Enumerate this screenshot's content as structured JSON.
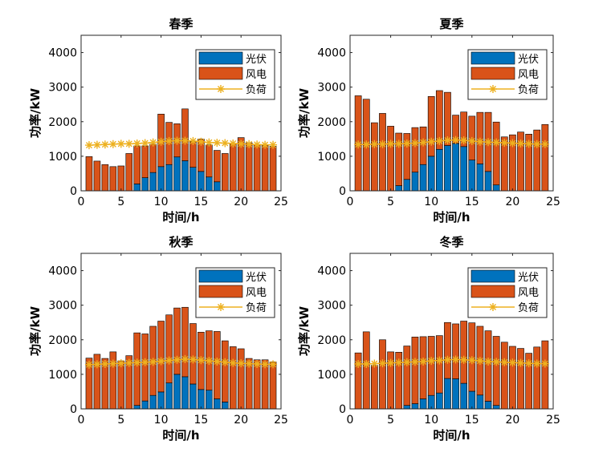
{
  "colors": {
    "pv": "#0072BD",
    "wind": "#D95319",
    "load": "#EDB120",
    "axes": "#262626",
    "background": "#ffffff"
  },
  "chart_data": [
    {
      "type": "bar",
      "stacked": true,
      "title": "春季",
      "xlabel": "时间/h",
      "ylabel": "功率/kW",
      "xlim": [
        0,
        25
      ],
      "ylim": [
        0,
        4500
      ],
      "xticks": [
        0,
        5,
        10,
        15,
        20,
        25
      ],
      "yticks": [
        0,
        1000,
        2000,
        3000,
        4000
      ],
      "legend_position": "top-right",
      "x": [
        1,
        2,
        3,
        4,
        5,
        6,
        7,
        8,
        9,
        10,
        11,
        12,
        13,
        14,
        15,
        16,
        17,
        18,
        19,
        20,
        21,
        22,
        23,
        24
      ],
      "series": [
        {
          "name": "光伏",
          "kind": "bar",
          "color": "#0072BD",
          "values": [
            0,
            0,
            0,
            0,
            0,
            0,
            200,
            380,
            530,
            700,
            760,
            980,
            870,
            680,
            560,
            400,
            260,
            0,
            0,
            0,
            0,
            0,
            0,
            0
          ]
        },
        {
          "name": "风电",
          "kind": "bar",
          "color": "#D95319",
          "values": [
            990,
            860,
            760,
            700,
            720,
            1080,
            1100,
            920,
            820,
            1520,
            1220,
            960,
            1500,
            740,
            940,
            930,
            910,
            1080,
            1370,
            1540,
            1390,
            1340,
            1310,
            1290
          ]
        },
        {
          "name": "负荷",
          "kind": "line",
          "marker": "*",
          "color": "#EDB120",
          "values": [
            1320,
            1330,
            1340,
            1350,
            1360,
            1360,
            1370,
            1380,
            1400,
            1420,
            1440,
            1450,
            1450,
            1440,
            1420,
            1400,
            1390,
            1380,
            1370,
            1360,
            1350,
            1340,
            1330,
            1330
          ]
        }
      ]
    },
    {
      "type": "bar",
      "stacked": true,
      "title": "夏季",
      "xlabel": "时间/h",
      "ylabel": "功率/kW",
      "xlim": [
        0,
        25
      ],
      "ylim": [
        0,
        4500
      ],
      "xticks": [
        0,
        5,
        10,
        15,
        20,
        25
      ],
      "yticks": [
        0,
        1000,
        2000,
        3000,
        4000
      ],
      "legend_position": "top-right",
      "x": [
        1,
        2,
        3,
        4,
        5,
        6,
        7,
        8,
        9,
        10,
        11,
        12,
        13,
        14,
        15,
        16,
        17,
        18,
        19,
        20,
        21,
        22,
        23,
        24
      ],
      "series": [
        {
          "name": "光伏",
          "kind": "bar",
          "color": "#0072BD",
          "values": [
            0,
            0,
            0,
            0,
            0,
            150,
            330,
            540,
            760,
            1000,
            1200,
            1310,
            1370,
            1280,
            890,
            780,
            560,
            170,
            0,
            0,
            0,
            0,
            0,
            0
          ]
        },
        {
          "name": "风电",
          "kind": "bar",
          "color": "#D95319",
          "values": [
            2750,
            2650,
            1970,
            2240,
            1870,
            1520,
            1330,
            1290,
            1090,
            1730,
            1700,
            1540,
            820,
            1000,
            1270,
            1490,
            1710,
            1820,
            1560,
            1620,
            1700,
            1640,
            1760,
            1920
          ]
        },
        {
          "name": "负荷",
          "kind": "line",
          "marker": "*",
          "color": "#EDB120",
          "values": [
            1340,
            1340,
            1350,
            1350,
            1360,
            1360,
            1370,
            1380,
            1400,
            1420,
            1440,
            1460,
            1470,
            1460,
            1440,
            1420,
            1410,
            1400,
            1390,
            1380,
            1370,
            1360,
            1350,
            1350
          ]
        }
      ]
    },
    {
      "type": "bar",
      "stacked": true,
      "title": "秋季",
      "xlabel": "时间/h",
      "ylabel": "功率/kW",
      "xlim": [
        0,
        25
      ],
      "ylim": [
        0,
        4500
      ],
      "xticks": [
        0,
        5,
        10,
        15,
        20,
        25
      ],
      "yticks": [
        0,
        1000,
        2000,
        3000,
        4000
      ],
      "legend_position": "top-right",
      "x": [
        1,
        2,
        3,
        4,
        5,
        6,
        7,
        8,
        9,
        10,
        11,
        12,
        13,
        14,
        15,
        16,
        17,
        18,
        19,
        20,
        21,
        22,
        23,
        24
      ],
      "series": [
        {
          "name": "光伏",
          "kind": "bar",
          "color": "#0072BD",
          "values": [
            0,
            0,
            0,
            0,
            0,
            0,
            100,
            230,
            390,
            490,
            750,
            1000,
            930,
            720,
            560,
            540,
            290,
            200,
            0,
            0,
            0,
            0,
            0,
            0
          ]
        },
        {
          "name": "风电",
          "kind": "bar",
          "color": "#D95319",
          "values": [
            1470,
            1580,
            1460,
            1650,
            1390,
            1540,
            2100,
            1940,
            2000,
            2050,
            1970,
            1920,
            2010,
            1750,
            1660,
            1720,
            1950,
            1770,
            1800,
            1740,
            1460,
            1420,
            1420,
            1360
          ]
        },
        {
          "name": "负荷",
          "kind": "line",
          "marker": "*",
          "color": "#EDB120",
          "values": [
            1280,
            1290,
            1300,
            1310,
            1320,
            1330,
            1340,
            1350,
            1360,
            1380,
            1400,
            1420,
            1440,
            1430,
            1410,
            1390,
            1370,
            1350,
            1330,
            1320,
            1310,
            1300,
            1290,
            1290
          ]
        }
      ]
    },
    {
      "type": "bar",
      "stacked": true,
      "title": "冬季",
      "xlabel": "时间/h",
      "ylabel": "功率/kW",
      "xlim": [
        0,
        25
      ],
      "ylim": [
        0,
        4500
      ],
      "xticks": [
        0,
        5,
        10,
        15,
        20,
        25
      ],
      "yticks": [
        0,
        1000,
        2000,
        3000,
        4000
      ],
      "legend_position": "top-right",
      "x": [
        1,
        2,
        3,
        4,
        5,
        6,
        7,
        8,
        9,
        10,
        11,
        12,
        13,
        14,
        15,
        16,
        17,
        18,
        19,
        20,
        21,
        22,
        23,
        24
      ],
      "series": [
        {
          "name": "光伏",
          "kind": "bar",
          "color": "#0072BD",
          "values": [
            0,
            0,
            0,
            0,
            0,
            0,
            100,
            150,
            290,
            390,
            460,
            880,
            870,
            740,
            510,
            400,
            220,
            100,
            0,
            0,
            0,
            0,
            0,
            0
          ]
        },
        {
          "name": "风电",
          "kind": "bar",
          "color": "#D95319",
          "values": [
            1620,
            2230,
            1260,
            2000,
            1650,
            1640,
            1720,
            1930,
            1800,
            1710,
            1660,
            1620,
            1590,
            1800,
            1980,
            1990,
            2040,
            2000,
            1930,
            1810,
            1750,
            1610,
            1790,
            1970
          ]
        },
        {
          "name": "负荷",
          "kind": "line",
          "marker": "*",
          "color": "#EDB120",
          "values": [
            1300,
            1300,
            1310,
            1320,
            1330,
            1340,
            1350,
            1360,
            1370,
            1390,
            1400,
            1420,
            1430,
            1420,
            1410,
            1390,
            1370,
            1360,
            1350,
            1340,
            1330,
            1320,
            1310,
            1310
          ]
        }
      ]
    }
  ]
}
